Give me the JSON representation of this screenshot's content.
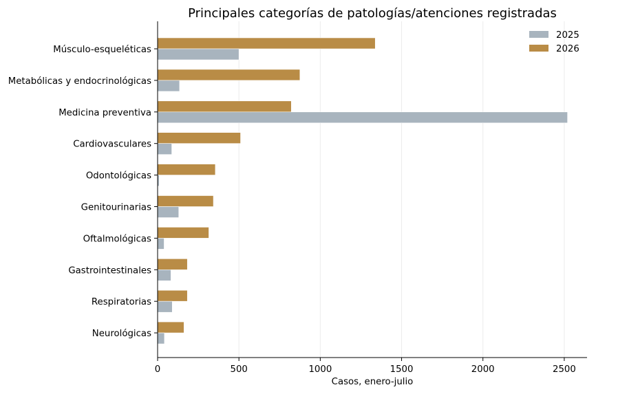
{
  "chart_data": {
    "type": "bar",
    "orientation": "horizontal",
    "title": "Principales categorías de patologías/atenciones registradas",
    "xlabel": "Casos, enero-julio",
    "ylabel": "",
    "xlim": [
      0,
      2640
    ],
    "xticks": [
      0,
      500,
      1000,
      1500,
      2000,
      2500
    ],
    "xtick_labels": [
      "0",
      "500",
      "1000",
      "1500",
      "2000",
      "2500"
    ],
    "grid": "vertical",
    "legend_position": "top-right",
    "categories": [
      "Músculo-esqueléticas",
      "Metabólicas y endocrinológicas",
      "Medicina preventiva",
      "Cardiovasculares",
      "Odontológicas",
      "Genitourinarias",
      "Oftalmológicas",
      "Gastrointestinales",
      "Respiratorias",
      "Neurológicas"
    ],
    "series": [
      {
        "name": "2025",
        "color": "#a8b4be",
        "values": [
          500,
          135,
          2520,
          87,
          10,
          130,
          40,
          82,
          90,
          42
        ]
      },
      {
        "name": "2026",
        "color": "#b98c46",
        "values": [
          1338,
          875,
          822,
          510,
          355,
          343,
          315,
          183,
          183,
          162
        ]
      }
    ]
  }
}
